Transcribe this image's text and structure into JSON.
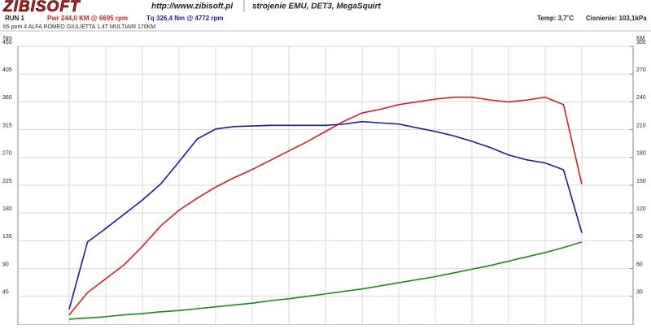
{
  "header": {
    "logo": "ZIBISOFT",
    "url": "http://www.zibisoft.pl",
    "tagline": "strojenie EMU, DET3, MegaSquirt",
    "run": "RUN 1",
    "temp": "Temp: 3,7˚C",
    "pressure": "Cisnienie: 103,1kPa",
    "description": "b5 pom 4 ALFA ROMEO GIULIETTA 1.4T MULTIAIR 170KM"
  },
  "chart_data": {
    "type": "line",
    "y_label": "Nm",
    "y2_label": "KM",
    "categories": [
      null,
      null,
      null,
      null,
      null,
      null,
      null,
      null,
      null,
      null,
      null,
      null,
      null,
      null,
      null,
      null,
      null,
      null,
      null,
      null,
      null,
      null,
      null,
      null,
      null,
      null,
      null,
      null,
      null
    ],
    "ylim": [
      0,
      450
    ],
    "yticks": [
      45,
      90,
      135,
      180,
      225,
      270,
      315,
      360,
      405,
      450
    ],
    "y2lim": [
      0,
      300
    ],
    "y2ticks": [
      30,
      60,
      90,
      120,
      150,
      180,
      210,
      240,
      270,
      300
    ],
    "grid": true,
    "series": [
      {
        "name": "Pwr  244,0 KM @ 6695 rpm",
        "color": "#d42020",
        "axis": "y2",
        "values": [
          10,
          34,
          49,
          64,
          84,
          106,
          123,
          136,
          148,
          158,
          167,
          177,
          187,
          197,
          208,
          219,
          228,
          232,
          237,
          240,
          243,
          245,
          245,
          242,
          240,
          242,
          245,
          237,
          151
        ]
      },
      {
        "name": "Tq 326,4 Nm @ 4772 rpm",
        "color": "#1c1ca0",
        "values": [
          24,
          133,
          155,
          178,
          201,
          227,
          263,
          300,
          316,
          320,
          321,
          322,
          322,
          322,
          322,
          324,
          328,
          326,
          324,
          318,
          312,
          305,
          296,
          286,
          274,
          266,
          261,
          250,
          148
        ]
      },
      {
        "color": "#1a8a1a",
        "values": [
          8,
          10,
          12,
          15,
          17,
          20,
          22,
          25,
          28,
          31,
          34,
          38,
          41,
          45,
          49,
          53,
          57,
          62,
          67,
          72,
          77,
          83,
          89,
          95,
          102,
          109,
          116,
          124,
          133
        ]
      }
    ]
  }
}
